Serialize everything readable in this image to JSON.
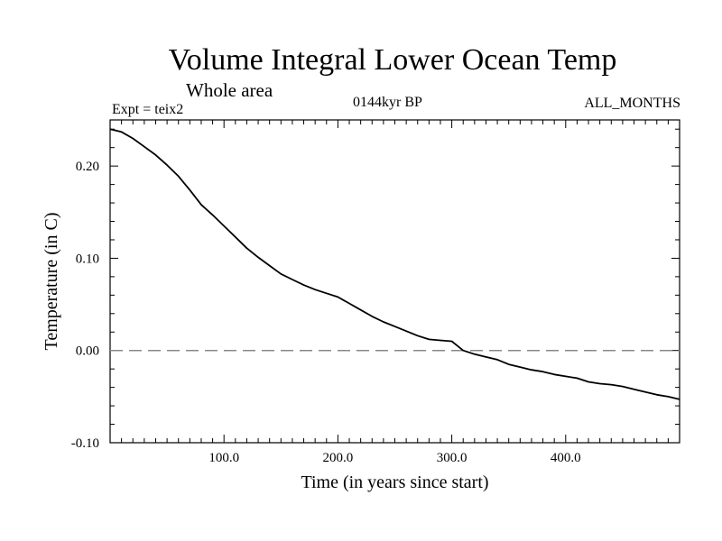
{
  "header": {
    "title": "Volume Integral Lower Ocean Temp",
    "subtitle": "Whole area",
    "experiment": "Expt = teix2",
    "period": "0144kyr BP",
    "months": "ALL_MONTHS"
  },
  "chart_data": {
    "type": "line",
    "title": "Volume Integral Lower Ocean Temp",
    "xlabel": "Time (in years since start)",
    "ylabel": "Temperature (in C)",
    "xlim": [
      0,
      500
    ],
    "ylim": [
      -0.1,
      0.25
    ],
    "xticks": [
      100,
      200,
      300,
      400
    ],
    "xtick_labels": [
      "100.0",
      "200.0",
      "300.0",
      "400.0"
    ],
    "yticks": [
      -0.1,
      0.0,
      0.1,
      0.2
    ],
    "ytick_labels": [
      "-0.10",
      "0.00",
      "0.10",
      "0.20"
    ],
    "grid": false,
    "reference_line": {
      "y": 0.0,
      "style": "dashed",
      "color": "#888888"
    },
    "series": [
      {
        "x": [
          0,
          10,
          20,
          30,
          40,
          50,
          60,
          70,
          80,
          90,
          100,
          110,
          120,
          130,
          140,
          150,
          160,
          170,
          180,
          190,
          200,
          210,
          220,
          230,
          240,
          250,
          260,
          270,
          280,
          290,
          300,
          305,
          310,
          320,
          330,
          340,
          350,
          360,
          370,
          380,
          390,
          400,
          410,
          420,
          430,
          440,
          450,
          460,
          470,
          480,
          490,
          500
        ],
        "y": [
          0.24,
          0.237,
          0.23,
          0.221,
          0.212,
          0.201,
          0.189,
          0.174,
          0.158,
          0.147,
          0.135,
          0.123,
          0.111,
          0.101,
          0.092,
          0.083,
          0.077,
          0.071,
          0.066,
          0.062,
          0.058,
          0.051,
          0.044,
          0.037,
          0.031,
          0.026,
          0.021,
          0.016,
          0.012,
          0.011,
          0.01,
          0.005,
          0.0,
          -0.004,
          -0.007,
          -0.01,
          -0.015,
          -0.018,
          -0.021,
          -0.023,
          -0.026,
          -0.028,
          -0.03,
          -0.034,
          -0.036,
          -0.037,
          -0.039,
          -0.042,
          -0.045,
          -0.048,
          -0.05,
          -0.053
        ],
        "color": "#000000"
      }
    ]
  }
}
